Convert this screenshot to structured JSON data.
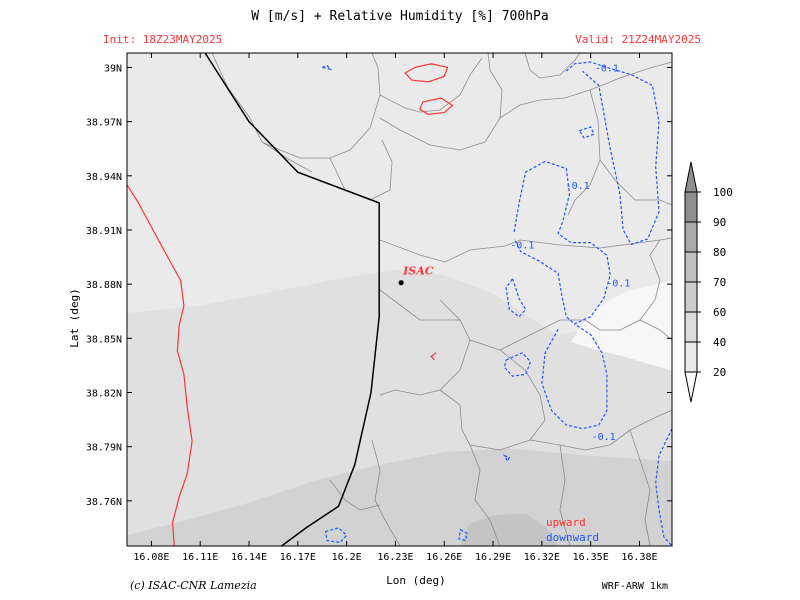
{
  "header": {
    "title": "W [m/s] + Relative Humidity [%] 700hPa",
    "init": "Init: 18Z23MAY2025",
    "valid": "Valid: 21Z24MAY2025"
  },
  "footer": {
    "credit": "(c) ISAC-CNR Lamezia",
    "model": "WRF-ARW 1km"
  },
  "chart_data": {
    "type": "heatmap",
    "title": "W [m/s] + Relative Humidity [%] 700hPa",
    "xlabel": "Lon (deg)",
    "ylabel": "Lat (deg)",
    "xlim": [
      16.065,
      16.4
    ],
    "ylim": [
      38.735,
      39.008
    ],
    "x_ticks": [
      16.08,
      16.11,
      16.14,
      16.17,
      16.2,
      16.23,
      16.26,
      16.29,
      16.32,
      16.35,
      16.38
    ],
    "x_tick_labels": [
      "16.08E",
      "16.11E",
      "16.14E",
      "16.17E",
      "16.2E",
      "16.23E",
      "16.26E",
      "16.29E",
      "16.32E",
      "16.35E",
      "16.38E"
    ],
    "y_ticks": [
      38.76,
      38.79,
      38.82,
      38.85,
      38.88,
      38.91,
      38.94,
      38.97,
      39.0
    ],
    "y_tick_labels": [
      "38.76N",
      "38.79N",
      "38.82N",
      "38.85N",
      "38.88N",
      "38.91N",
      "38.94N",
      "38.97N",
      "39N"
    ],
    "colorbar": {
      "levels": [
        20,
        40,
        60,
        70,
        80,
        90,
        100
      ],
      "colors": [
        "#fafafa",
        "#eaeaea",
        "#dcdcdc",
        "#cdcdcd",
        "#c0c0c0",
        "#a9a9a9",
        "#8f8f8f"
      ]
    },
    "humidity_regions": [
      {
        "level": "40-60",
        "color": "#eaeaea",
        "points": [
          [
            16.065,
            39.008
          ],
          [
            16.4,
            39.008
          ],
          [
            16.4,
            38.88
          ],
          [
            16.365,
            38.87
          ],
          [
            16.35,
            38.855
          ],
          [
            16.33,
            38.852
          ],
          [
            16.315,
            38.86
          ],
          [
            16.29,
            38.875
          ],
          [
            16.26,
            38.885
          ],
          [
            16.23,
            38.888
          ],
          [
            16.19,
            38.882
          ],
          [
            16.15,
            38.875
          ],
          [
            16.11,
            38.868
          ],
          [
            16.065,
            38.864
          ]
        ]
      },
      {
        "level": "20-40",
        "color": "#f7f7f7",
        "points": [
          [
            16.338,
            38.848
          ],
          [
            16.35,
            38.865
          ],
          [
            16.372,
            38.876
          ],
          [
            16.4,
            38.882
          ],
          [
            16.4,
            38.832
          ],
          [
            16.37,
            38.84
          ],
          [
            16.352,
            38.844
          ]
        ]
      },
      {
        "level": "60-70",
        "color": "#d2d2d2",
        "points": [
          [
            16.065,
            38.741
          ],
          [
            16.065,
            38.735
          ],
          [
            16.4,
            38.735
          ],
          [
            16.4,
            38.782
          ],
          [
            16.35,
            38.785
          ],
          [
            16.3,
            38.789
          ],
          [
            16.26,
            38.787
          ],
          [
            16.22,
            38.78
          ],
          [
            16.18,
            38.771
          ],
          [
            16.14,
            38.759
          ],
          [
            16.1,
            38.749
          ]
        ]
      },
      {
        "level": "70-80",
        "color": "#c4c4c4",
        "points": [
          [
            16.27,
            38.735
          ],
          [
            16.33,
            38.735
          ],
          [
            16.323,
            38.745
          ],
          [
            16.31,
            38.753
          ],
          [
            16.29,
            38.752
          ],
          [
            16.275,
            38.747
          ]
        ]
      }
    ],
    "w_contours": [
      {
        "sign": "upward",
        "color": "#ff3333",
        "points": [
          [
            16.065,
            38.935
          ],
          [
            16.072,
            38.925
          ],
          [
            16.081,
            38.91
          ],
          [
            16.09,
            38.895
          ],
          [
            16.098,
            38.882
          ],
          [
            16.1,
            38.868
          ],
          [
            16.097,
            38.857
          ],
          [
            16.096,
            38.843
          ],
          [
            16.1,
            38.83
          ],
          [
            16.102,
            38.812
          ],
          [
            16.105,
            38.793
          ],
          [
            16.102,
            38.775
          ],
          [
            16.097,
            38.762
          ],
          [
            16.093,
            38.748
          ],
          [
            16.094,
            38.735
          ]
        ]
      },
      {
        "sign": "upward",
        "color": "#ff3333",
        "closed": true,
        "points": [
          [
            16.236,
            38.997
          ],
          [
            16.242,
            39.0
          ],
          [
            16.252,
            39.002
          ],
          [
            16.262,
            39.0
          ],
          [
            16.26,
            38.995
          ],
          [
            16.25,
            38.992
          ],
          [
            16.24,
            38.993
          ]
        ]
      },
      {
        "sign": "upward",
        "color": "#ff3333",
        "closed": true,
        "points": [
          [
            16.247,
            38.981
          ],
          [
            16.258,
            38.983
          ],
          [
            16.265,
            38.979
          ],
          [
            16.26,
            38.975
          ],
          [
            16.25,
            38.974
          ],
          [
            16.245,
            38.977
          ]
        ]
      },
      {
        "sign": "upward",
        "color": "#ff3333",
        "closed": false,
        "points": [
          [
            16.254,
            38.838
          ],
          [
            16.252,
            38.84
          ],
          [
            16.255,
            38.842
          ]
        ]
      },
      {
        "sign": "downward",
        "color": "#2255ff",
        "closed": false,
        "points": [
          [
            16.335,
            38.998
          ],
          [
            16.34,
            39.002
          ],
          [
            16.35,
            39.003
          ],
          [
            16.36,
            39.0
          ],
          [
            16.375,
            38.996
          ],
          [
            16.388,
            38.99
          ],
          [
            16.392,
            38.97
          ],
          [
            16.39,
            38.945
          ],
          [
            16.392,
            38.92
          ],
          [
            16.385,
            38.905
          ],
          [
            16.375,
            38.902
          ],
          [
            16.37,
            38.91
          ],
          [
            16.368,
            38.93
          ],
          [
            16.362,
            38.955
          ],
          [
            16.358,
            38.975
          ],
          [
            16.355,
            38.99
          ],
          [
            16.345,
            38.998
          ]
        ]
      },
      {
        "sign": "downward",
        "color": "#2255ff",
        "closed": false,
        "points": [
          [
            16.303,
            38.909
          ],
          [
            16.306,
            38.925
          ],
          [
            16.31,
            38.942
          ],
          [
            16.322,
            38.948
          ],
          [
            16.335,
            38.944
          ],
          [
            16.337,
            38.93
          ],
          [
            16.333,
            38.915
          ],
          [
            16.33,
            38.908
          ],
          [
            16.338,
            38.903
          ],
          [
            16.35,
            38.903
          ],
          [
            16.36,
            38.896
          ],
          [
            16.362,
            38.885
          ],
          [
            16.358,
            38.872
          ],
          [
            16.35,
            38.862
          ],
          [
            16.34,
            38.858
          ],
          [
            16.335,
            38.862
          ],
          [
            16.332,
            38.875
          ],
          [
            16.33,
            38.886
          ],
          [
            16.318,
            38.893
          ],
          [
            16.307,
            38.898
          ],
          [
            16.303,
            38.905
          ]
        ]
      },
      {
        "sign": "downward",
        "color": "#2255ff",
        "closed": true,
        "points": [
          [
            16.302,
            38.883
          ],
          [
            16.306,
            38.872
          ],
          [
            16.31,
            38.866
          ],
          [
            16.306,
            38.862
          ],
          [
            16.3,
            38.866
          ],
          [
            16.298,
            38.878
          ]
        ]
      },
      {
        "sign": "downward",
        "color": "#2255ff",
        "closed": true,
        "points": [
          [
            16.298,
            38.838
          ],
          [
            16.308,
            38.842
          ],
          [
            16.313,
            38.837
          ],
          [
            16.31,
            38.83
          ],
          [
            16.302,
            38.829
          ],
          [
            16.297,
            38.834
          ]
        ]
      },
      {
        "sign": "downward",
        "color": "#2255ff",
        "closed": false,
        "points": [
          [
            16.33,
            38.855
          ],
          [
            16.322,
            38.842
          ],
          [
            16.32,
            38.825
          ],
          [
            16.326,
            38.81
          ],
          [
            16.335,
            38.802
          ],
          [
            16.345,
            38.8
          ],
          [
            16.355,
            38.802
          ],
          [
            16.36,
            38.81
          ],
          [
            16.36,
            38.83
          ],
          [
            16.357,
            38.842
          ],
          [
            16.35,
            38.852
          ],
          [
            16.34,
            38.858
          ]
        ]
      },
      {
        "sign": "downward",
        "color": "#2255ff",
        "closed": true,
        "points": [
          [
            16.343,
            38.965
          ],
          [
            16.35,
            38.967
          ],
          [
            16.352,
            38.963
          ],
          [
            16.346,
            38.961
          ]
        ]
      },
      {
        "sign": "downward",
        "color": "#2255ff",
        "closed": false,
        "points": [
          [
            16.4,
            38.8
          ],
          [
            16.392,
            38.785
          ],
          [
            16.39,
            38.77
          ],
          [
            16.392,
            38.755
          ],
          [
            16.395,
            38.74
          ],
          [
            16.4,
            38.735
          ]
        ]
      },
      {
        "sign": "downward",
        "color": "#2255ff",
        "closed": true,
        "points": [
          [
            16.187,
            38.743
          ],
          [
            16.195,
            38.745
          ],
          [
            16.2,
            38.741
          ],
          [
            16.196,
            38.737
          ],
          [
            16.188,
            38.738
          ]
        ]
      },
      {
        "sign": "downward",
        "color": "#2255ff",
        "closed": true,
        "points": [
          [
            16.27,
            38.744
          ],
          [
            16.274,
            38.742
          ],
          [
            16.273,
            38.738
          ],
          [
            16.269,
            38.739
          ]
        ]
      },
      {
        "sign": "downward",
        "color": "#2255ff",
        "closed": true,
        "points": [
          [
            16.297,
            38.785
          ],
          [
            16.3,
            38.784
          ],
          [
            16.299,
            38.782
          ]
        ]
      },
      {
        "sign": "downward",
        "color": "#2255ff",
        "closed": true,
        "points": [
          [
            16.185,
            39.0
          ],
          [
            16.188,
            39.001
          ],
          [
            16.19,
            38.999
          ]
        ]
      }
    ],
    "contour_labels": [
      {
        "text": "-0.1",
        "lon": 16.36,
        "lat": 39.0,
        "color": "#2255ff"
      },
      {
        "text": "-0.1",
        "lon": 16.342,
        "lat": 38.935,
        "color": "#2255ff"
      },
      {
        "text": "-0.1",
        "lon": 16.308,
        "lat": 38.902,
        "color": "#2255ff"
      },
      {
        "text": "-0.1",
        "lon": 16.367,
        "lat": 38.881,
        "color": "#2255ff"
      },
      {
        "text": "-0.1",
        "lon": 16.358,
        "lat": 38.796,
        "color": "#2255ff"
      }
    ],
    "boundary_line": [
      [
        16.113,
        39.008
      ],
      [
        16.14,
        38.97
      ],
      [
        16.17,
        38.942
      ],
      [
        16.22,
        38.925
      ],
      [
        16.22,
        38.862
      ],
      [
        16.215,
        38.82
      ],
      [
        16.205,
        38.78
      ],
      [
        16.195,
        38.757
      ],
      [
        16.175,
        38.745
      ],
      [
        16.16,
        38.735
      ]
    ],
    "legend": {
      "upward": "upward",
      "downward": "downward",
      "upward_color": "#ff3333",
      "downward_color": "#2255ff"
    },
    "station": {
      "label": "ISAC",
      "lon": 16.2335,
      "lat": 38.8808,
      "label_color": "#ff3333"
    }
  }
}
